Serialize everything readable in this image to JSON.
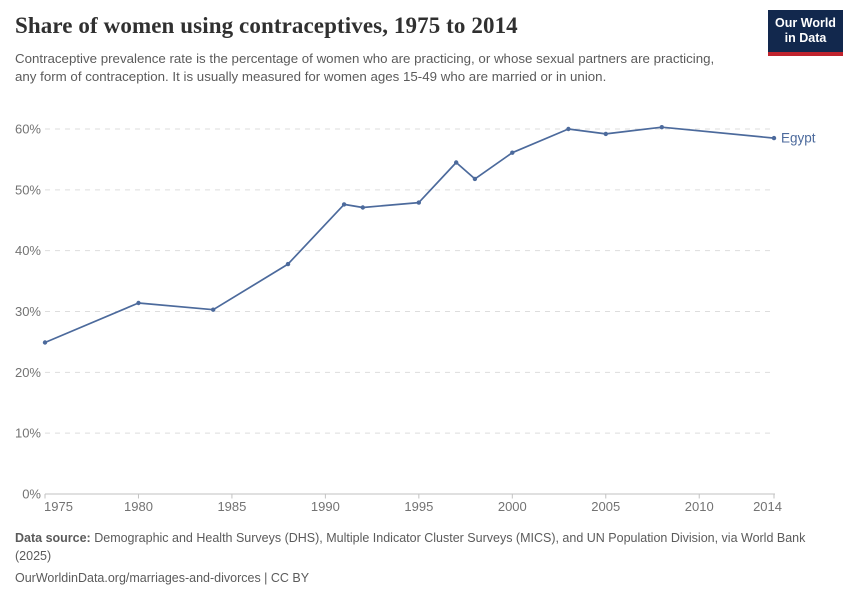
{
  "header": {
    "title": "Share of women using contraceptives, 1975 to 2014",
    "subtitle": "Contraceptive prevalence rate is the percentage of women who are practicing, or whose sexual partners are practicing, any form of contraception. It is usually measured for women ages 15-49 who are married or in union.",
    "logo": {
      "line1": "Our World",
      "line2": "in Data"
    }
  },
  "chart_data": {
    "type": "line",
    "title": "Share of women using contraceptives, 1975 to 2014",
    "xlabel": "",
    "ylabel": "",
    "xlim": [
      1975,
      2014
    ],
    "ylim": [
      0,
      60
    ],
    "x_ticks": [
      1975,
      1980,
      1985,
      1990,
      1995,
      2000,
      2005,
      2010,
      2014
    ],
    "y_ticks": [
      0,
      10,
      20,
      30,
      40,
      50,
      60
    ],
    "y_tick_suffix": "%",
    "grid": "horizontal-dashed",
    "legend_position": "end-of-line-label",
    "series": [
      {
        "name": "Egypt",
        "color": "#4c6a9c",
        "x": [
          1975,
          1980,
          1984,
          1988,
          1991,
          1992,
          1995,
          1997,
          1998,
          2000,
          2003,
          2005,
          2008,
          2014
        ],
        "values": [
          24.9,
          31.4,
          30.3,
          37.8,
          47.6,
          47.1,
          47.9,
          54.5,
          51.8,
          56.1,
          60.0,
          59.2,
          60.3,
          58.5
        ]
      }
    ]
  },
  "footer": {
    "source_label": "Data source:",
    "source_text": "Demographic and Health Surveys (DHS), Multiple Indicator Cluster Surveys (MICS), and UN Population Division, via World Bank (2025)",
    "license_line": "OurWorldinData.org/marriages-and-divorces | CC BY"
  },
  "colors": {
    "accent_line": "#4c6a9c",
    "logo_bg": "#12284d",
    "logo_bar": "#c0232d",
    "grid": "#dddddd",
    "axis": "#c2c2c2",
    "tick_text": "#737373",
    "title_text": "#303030",
    "body_text": "#5b5b5b"
  }
}
